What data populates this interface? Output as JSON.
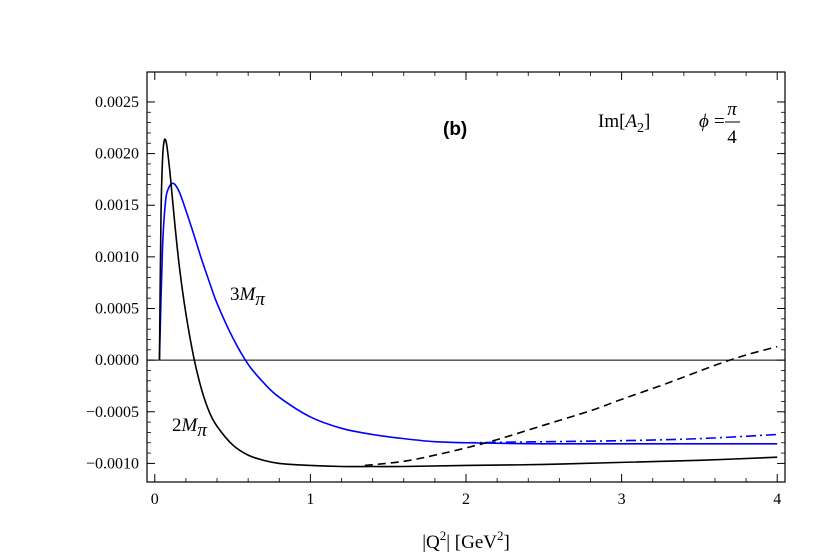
{
  "chart_data": {
    "type": "line",
    "panel_label": "(b)",
    "xlabel": {
      "text": "|Q",
      "sup": "2",
      "rest": "| [GeV",
      "unit_sup": "2",
      "close": "]"
    },
    "ylabel": "",
    "xlim": [
      -0.05,
      4.05
    ],
    "ylim": [
      -0.00118,
      0.00279
    ],
    "x_ticks": [
      0,
      1,
      2,
      3,
      4
    ],
    "x_tick_labels": [
      "0",
      "1",
      "2",
      "3",
      "4"
    ],
    "y_ticks": [
      0.0025,
      0.002,
      0.0015,
      0.001,
      0.0005,
      0,
      -0.0005,
      -0.001
    ],
    "y_tick_labels": [
      "0.0025",
      "0.0020",
      "0.0015",
      "0.0010",
      "0.0005",
      "0.0000",
      "−0.0005",
      "−0.0010"
    ],
    "zero_line": true,
    "annotations": {
      "quantity_prefix": "Im[",
      "quantity_var": "A",
      "quantity_sub": "2",
      "quantity_suffix": "]",
      "phi_symbol": "ϕ",
      "phi_equals": "=",
      "phi_num": "π",
      "phi_den": "4",
      "label_3m_coeff": "3",
      "label_3m_M": "M",
      "label_3m_sub": "π",
      "label_2m_coeff": "2",
      "label_2m_M": "M",
      "label_2m_sub": "π"
    },
    "series": [
      {
        "color": "#0000ff",
        "style": "solid",
        "x": [
          0.03,
          0.05,
          0.07,
          0.09,
          0.11,
          0.13,
          0.16,
          0.2,
          0.25,
          0.3,
          0.35,
          0.4,
          0.5,
          0.6,
          0.7,
          0.8,
          1.0,
          1.2,
          1.4,
          1.6,
          1.8,
          2.0,
          2.5,
          3.0,
          3.5,
          4.0
        ],
        "y": [
          0.0,
          0.0011,
          0.00155,
          0.00167,
          0.00171,
          0.0017,
          0.00162,
          0.00145,
          0.00122,
          0.00098,
          0.00076,
          0.00055,
          0.00022,
          -4e-05,
          -0.00022,
          -0.00036,
          -0.00055,
          -0.00066,
          -0.00072,
          -0.00076,
          -0.00079,
          -0.0008,
          -0.00081,
          -0.00081,
          -0.00081,
          -0.00081
        ]
      },
      {
        "color": "#0000ff",
        "style": "dashdot",
        "x": [
          2.0,
          2.5,
          3.0,
          3.5,
          4.0
        ],
        "y": [
          -0.0008,
          -0.00079,
          -0.00078,
          -0.00076,
          -0.00072
        ]
      },
      {
        "color": "#000000",
        "style": "solid",
        "x": [
          0.03,
          0.04,
          0.05,
          0.06,
          0.07,
          0.08,
          0.1,
          0.13,
          0.16,
          0.2,
          0.25,
          0.3,
          0.35,
          0.4,
          0.5,
          0.6,
          0.7,
          0.8,
          1.0,
          1.2,
          1.4,
          1.6,
          2.0,
          2.5,
          3.0,
          3.5,
          4.0
        ],
        "y": [
          0.0,
          0.0014,
          0.00195,
          0.00212,
          0.00213,
          0.00205,
          0.00178,
          0.0013,
          0.00088,
          0.00045,
          3e-05,
          -0.00028,
          -0.0005,
          -0.00064,
          -0.00082,
          -0.00092,
          -0.00097,
          -0.001,
          -0.00102,
          -0.00103,
          -0.00103,
          -0.00103,
          -0.00102,
          -0.00101,
          -0.00099,
          -0.00097,
          -0.00094
        ]
      },
      {
        "color": "#000000",
        "style": "dashed",
        "x": [
          1.35,
          1.6,
          1.8,
          2.0,
          2.2,
          2.5,
          2.8,
          3.0,
          3.3,
          3.6,
          3.8,
          4.0
        ],
        "y": [
          -0.00102,
          -0.00098,
          -0.00092,
          -0.00085,
          -0.00077,
          -0.00063,
          -0.00049,
          -0.00038,
          -0.00022,
          -5e-05,
          5e-05,
          0.00013
        ]
      }
    ]
  }
}
